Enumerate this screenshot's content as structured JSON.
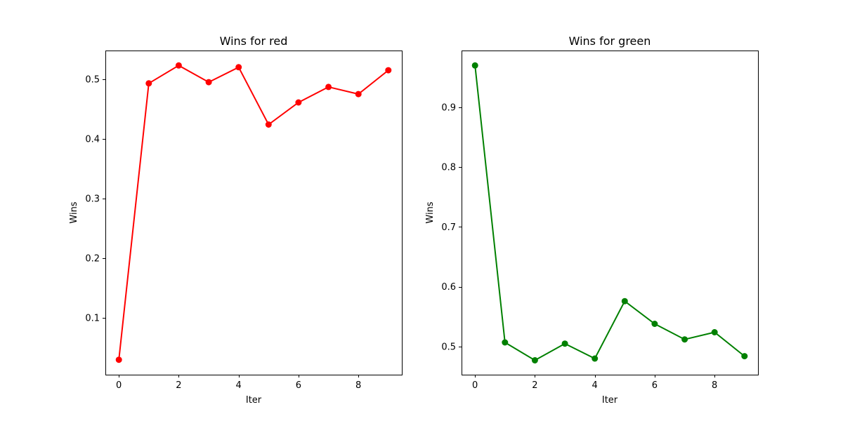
{
  "chart_data": [
    {
      "type": "line",
      "title": "Wins for red",
      "xlabel": "Iter",
      "ylabel": "Wins",
      "color": "#ff0000",
      "marker": "circle",
      "x": [
        0,
        1,
        2,
        3,
        4,
        5,
        6,
        7,
        8,
        9
      ],
      "y": [
        0.03,
        0.493,
        0.523,
        0.495,
        0.52,
        0.424,
        0.461,
        0.487,
        0.475,
        0.515
      ],
      "xlim": [
        -0.45,
        9.45
      ],
      "ylim": [
        0.005,
        0.548
      ],
      "xticks": [
        0,
        2,
        4,
        6,
        8
      ],
      "xtick_labels": [
        "0",
        "2",
        "4",
        "6",
        "8"
      ],
      "yticks": [
        0.1,
        0.2,
        0.3,
        0.4,
        0.5
      ],
      "ytick_labels": [
        "0.1",
        "0.2",
        "0.3",
        "0.4",
        "0.5"
      ],
      "grid": false,
      "legend": null
    },
    {
      "type": "line",
      "title": "Wins for green",
      "xlabel": "Iter",
      "ylabel": "Wins",
      "color": "#008000",
      "marker": "circle",
      "x": [
        0,
        1,
        2,
        3,
        4,
        5,
        6,
        7,
        8,
        9
      ],
      "y": [
        0.97,
        0.507,
        0.477,
        0.505,
        0.48,
        0.576,
        0.538,
        0.512,
        0.524,
        0.484
      ],
      "xlim": [
        -0.45,
        9.45
      ],
      "ylim": [
        0.453,
        0.995
      ],
      "xticks": [
        0,
        2,
        4,
        6,
        8
      ],
      "xtick_labels": [
        "0",
        "2",
        "4",
        "6",
        "8"
      ],
      "yticks": [
        0.5,
        0.6,
        0.7,
        0.8,
        0.9
      ],
      "ytick_labels": [
        "0.5",
        "0.6",
        "0.7",
        "0.8",
        "0.9"
      ],
      "grid": false,
      "legend": null
    }
  ]
}
